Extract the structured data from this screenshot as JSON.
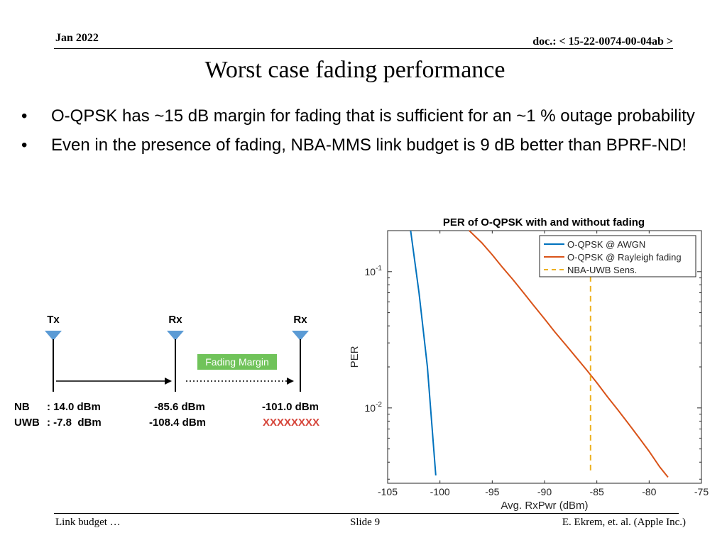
{
  "header": {
    "date": "Jan 2022",
    "doc_label": "doc.: ",
    "doc_id": "< 15-22-0074-00-04ab >"
  },
  "title": "Worst case fading performance",
  "bullets": [
    "O-QPSK has ~15 dB margin for fading that is sufficient for an ~1 % outage probability",
    "Even in the presence of fading, NBA-MMS link budget is 9 dB better than BPRF-ND!"
  ],
  "diagram": {
    "nodes": [
      "Tx",
      "Rx",
      "Rx"
    ],
    "fading_label": "Fading Margin",
    "row_nb": {
      "label": "NB",
      "values": [
        ": 14.0 dBm",
        "-85.6 dBm",
        "-101.0 dBm"
      ]
    },
    "row_uwb": {
      "label": "UWB",
      "values": [
        ": -7.8  dBm",
        "-108.4 dBm",
        "XXXXXXXX"
      ]
    },
    "colors": {
      "antenna": "#5b9bd5",
      "fading_bg": "#70c35a",
      "cross": "#d6453a"
    }
  },
  "chart_data": {
    "type": "line",
    "title": "PER of O-QPSK with and without fading",
    "xlabel": "Avg. RxPwr (dBm)",
    "ylabel": "PER",
    "xlim": [
      -105,
      -75
    ],
    "ylim": [
      0.0028,
      0.2
    ],
    "yscale": "log",
    "xticks": [
      -105,
      -100,
      -95,
      -90,
      -85,
      -80,
      -75
    ],
    "yticks": [
      {
        "value": 0.1,
        "base": "10",
        "exp": "-1"
      },
      {
        "value": 0.01,
        "base": "10",
        "exp": "-2"
      }
    ],
    "legend_position": "top-right",
    "grid": false,
    "series": [
      {
        "name": "O-QPSK @ AWGN",
        "color": "#0072bd",
        "style": "solid",
        "x": [
          -102.8,
          -102.0,
          -101.2,
          -100.4
        ],
        "y": [
          0.2,
          0.07,
          0.02,
          0.0032
        ]
      },
      {
        "name": "O-QPSK @ Rayleigh fading",
        "color": "#d95319",
        "style": "solid",
        "x": [
          -97.2,
          -96,
          -95,
          -94,
          -93,
          -92,
          -91,
          -90,
          -89,
          -88,
          -87,
          -86,
          -85,
          -84,
          -83,
          -82,
          -81,
          -80,
          -79,
          -78.2
        ],
        "y": [
          0.2,
          0.163,
          0.133,
          0.107,
          0.087,
          0.07,
          0.056,
          0.045,
          0.036,
          0.0292,
          0.0236,
          0.0191,
          0.0153,
          0.0121,
          0.0097,
          0.0077,
          0.0061,
          0.0048,
          0.0037,
          0.0031
        ]
      },
      {
        "name": "NBA-UWB Sens.",
        "color": "#edb120",
        "style": "dashed",
        "x": [
          -85.6,
          -85.6
        ],
        "y": [
          0.11,
          0.0034
        ]
      }
    ]
  },
  "footer": {
    "left": "Link budget …",
    "center": "Slide 9",
    "right": "E. Ekrem, et. al. (Apple Inc.)"
  }
}
